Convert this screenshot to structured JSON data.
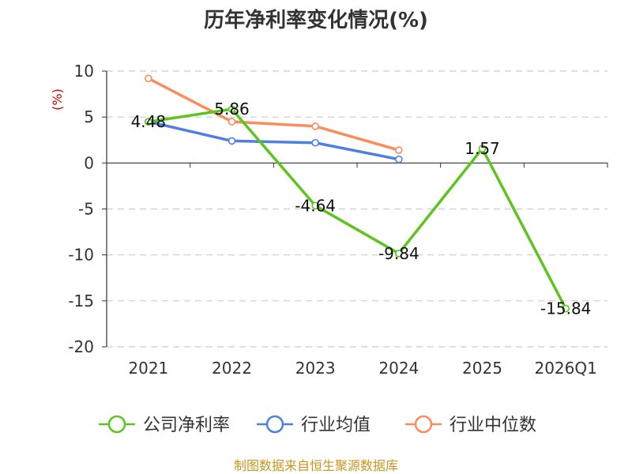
{
  "chart_data": {
    "type": "line",
    "title": "历年净利率变化情况(%)",
    "ylabel": "(%)",
    "ylim": [
      -20,
      10
    ],
    "yticks": [
      10,
      5,
      0,
      -5,
      -10,
      -15,
      -20
    ],
    "grid": true,
    "legend_position": "bottom",
    "categories": [
      "2021",
      "2022",
      "2023",
      "2024",
      "2025",
      "2026Q1"
    ],
    "series": [
      {
        "name": "公司净利率",
        "color": "#5ec41f",
        "values": [
          4.48,
          5.86,
          -4.64,
          -9.84,
          1.57,
          -15.84
        ],
        "labels": [
          "4.48",
          "5.86",
          "-4.64",
          "-9.84",
          "1.57",
          "-15.84"
        ]
      },
      {
        "name": "行业均值",
        "color": "#4f7fe0",
        "values": [
          4.5,
          2.4,
          2.2,
          0.4,
          null,
          null
        ]
      },
      {
        "name": "行业中位数",
        "color": "#f98d5c",
        "values": [
          9.2,
          4.5,
          4.0,
          1.4,
          null,
          null
        ]
      }
    ]
  },
  "footer": {
    "source": "制图数据来自恒生聚源数据库"
  }
}
